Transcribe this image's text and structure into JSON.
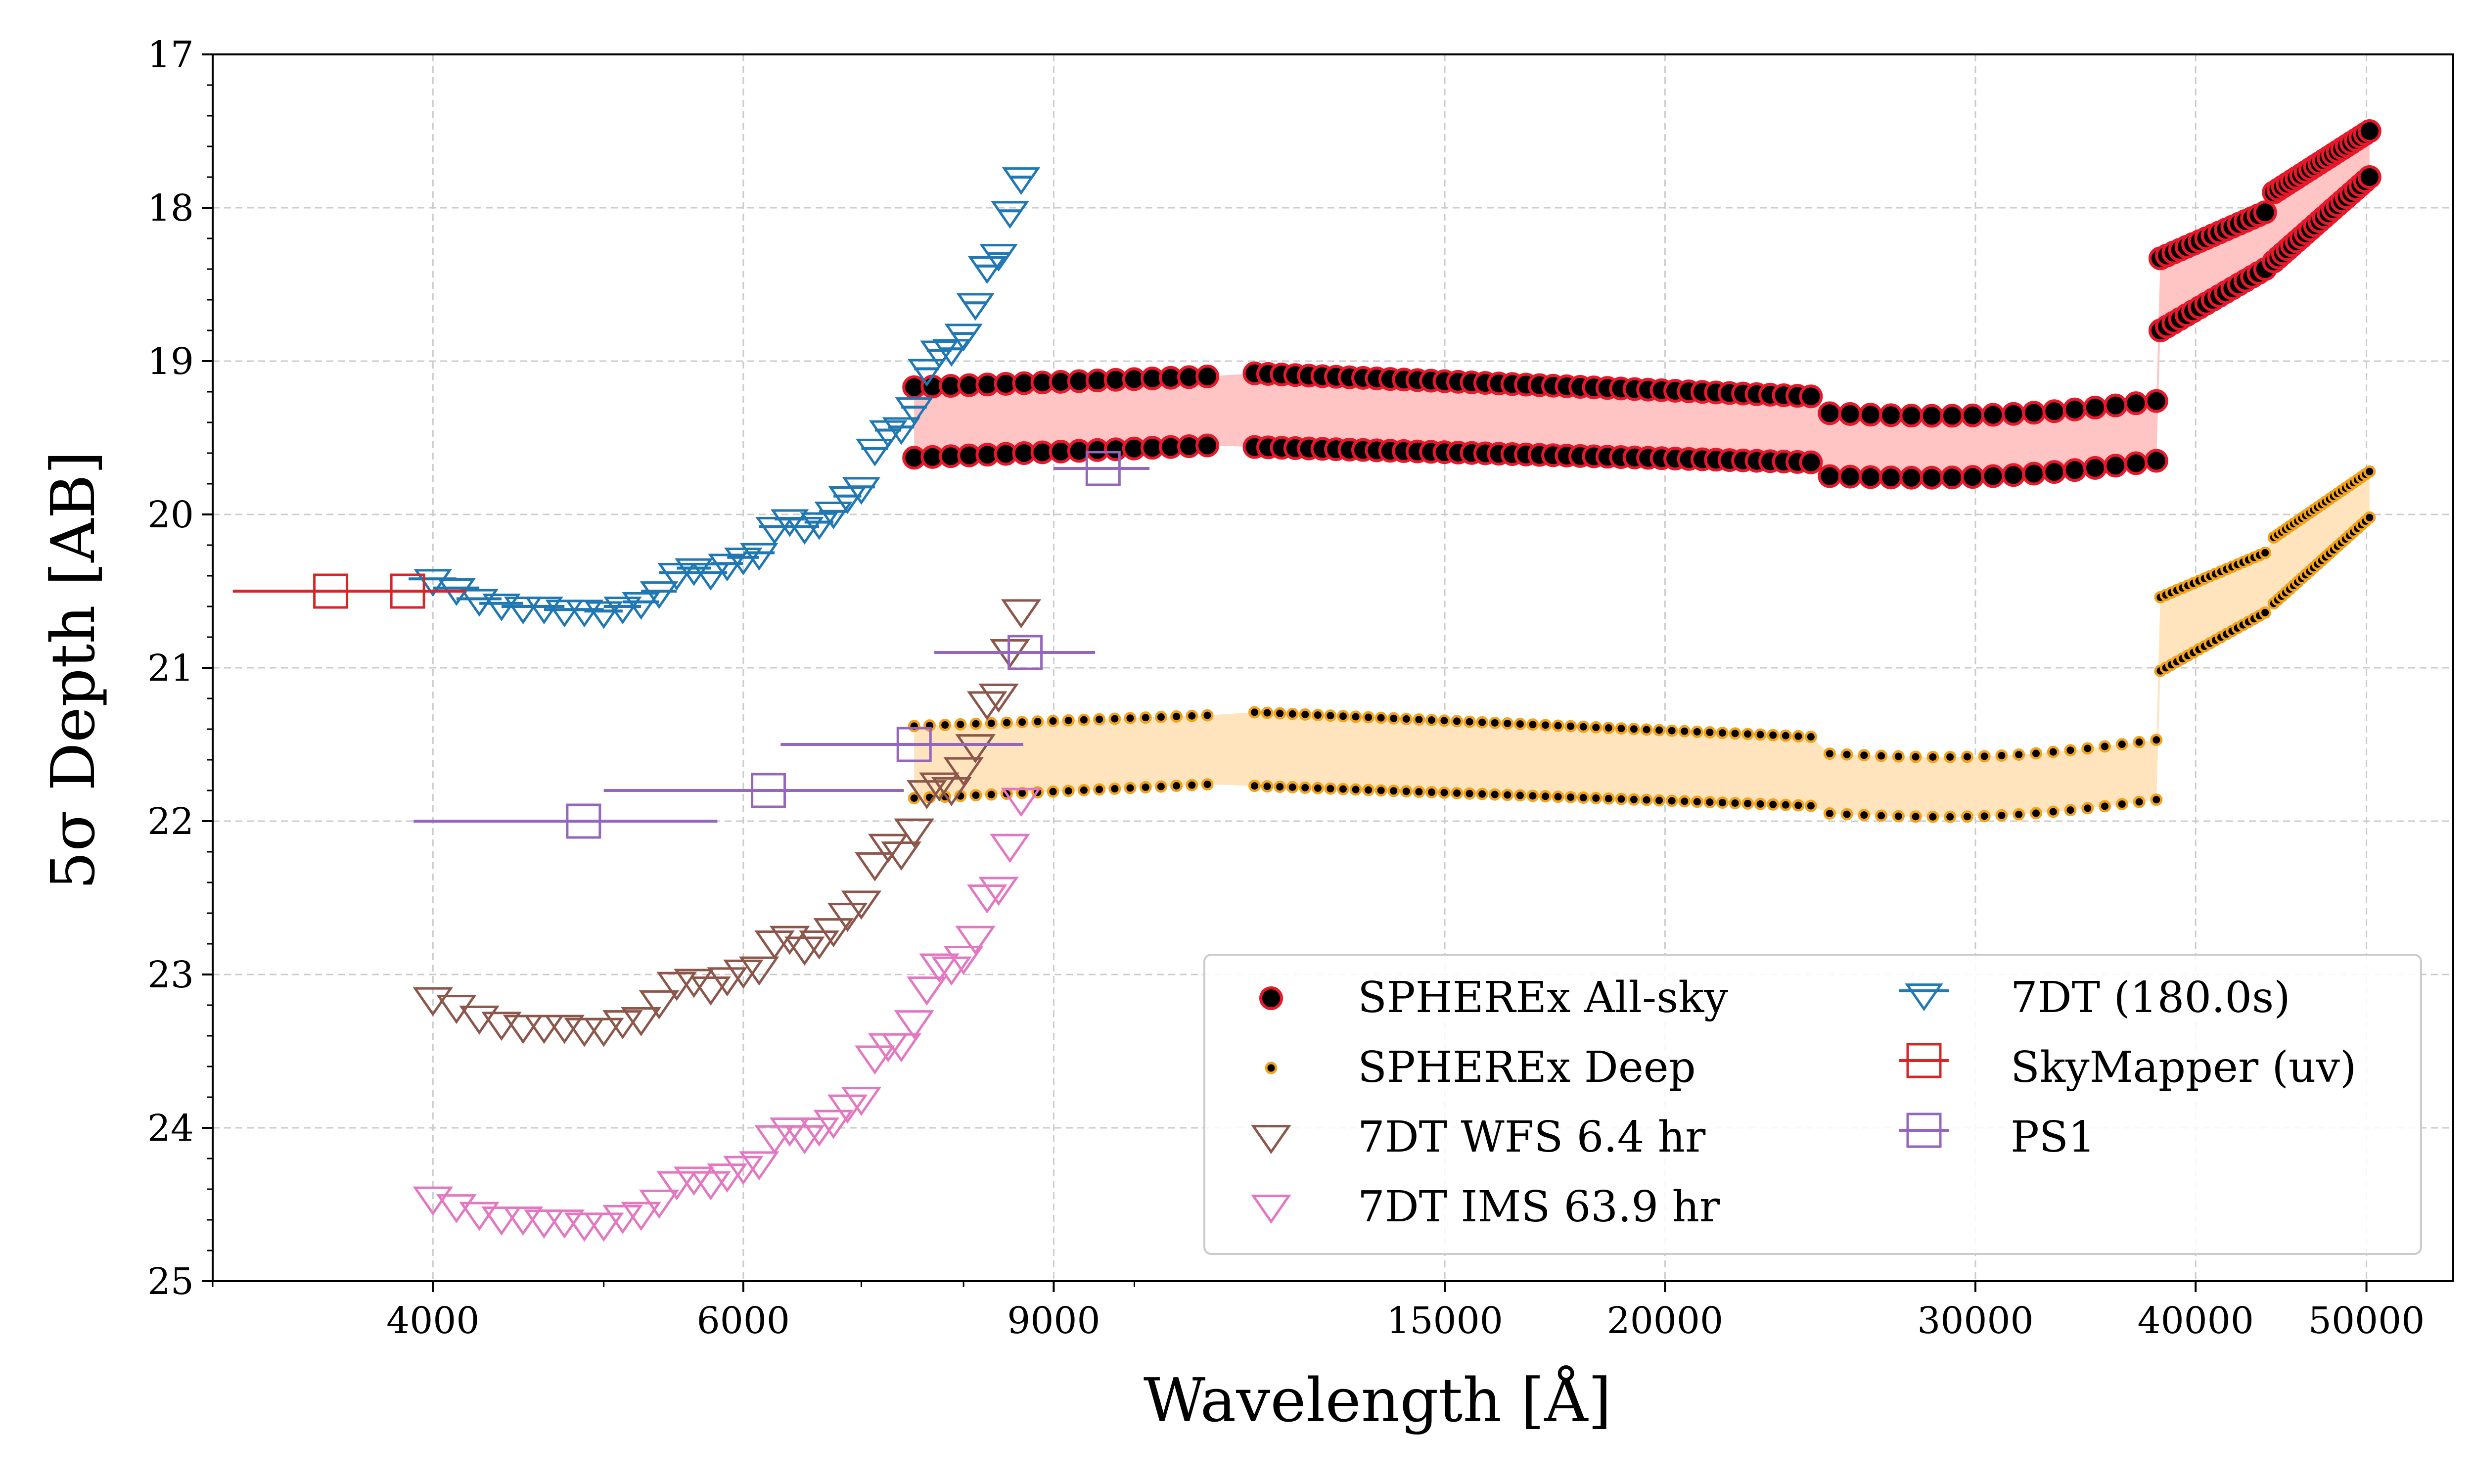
{
  "colors": {
    "allsky_band": "#ffc4c4",
    "deep_band": "#ffe4bd",
    "allsky_edge": "#e8182a",
    "deep_edge": "#f3a21b",
    "dot_fill": "#000000",
    "t7dt": "#1f77b4",
    "wfs": "#8c564b",
    "ims": "#e377c2",
    "skymapper": "#d62728",
    "ps1": "#9467bd",
    "grid": "#cccccc"
  },
  "chart_data": {
    "type": "scatter",
    "xlabel": "Wavelength [Å]",
    "ylabel": "5σ Depth [AB]",
    "xscale": "log",
    "xlim": [
      3000,
      56000
    ],
    "ylim": [
      25,
      17
    ],
    "y_inverted": true,
    "grid": true,
    "legend_position": "lower-right",
    "legend_columns": 2,
    "x_ticks": [
      {
        "value": 4000,
        "label": "4000"
      },
      {
        "value": 6000,
        "label": "6000"
      },
      {
        "value": 9000,
        "label": "9000"
      },
      {
        "value": 15000,
        "label": "15000"
      },
      {
        "value": 20000,
        "label": "20000"
      },
      {
        "value": 30000,
        "label": "30000"
      },
      {
        "value": 40000,
        "label": "40000"
      },
      {
        "value": 50000,
        "label": "50000"
      }
    ],
    "y_ticks": [
      {
        "value": 17,
        "label": "17"
      },
      {
        "value": 18,
        "label": "18"
      },
      {
        "value": 19,
        "label": "19"
      },
      {
        "value": 20,
        "label": "20"
      },
      {
        "value": 21,
        "label": "21"
      },
      {
        "value": 22,
        "label": "22"
      },
      {
        "value": 23,
        "label": "23"
      },
      {
        "value": 24,
        "label": "24"
      },
      {
        "value": 25,
        "label": "25"
      }
    ],
    "series": [
      {
        "name": "SPHEREx All-sky",
        "marker": "circle",
        "segments": [
          {
            "x0": 7500,
            "x1": 11000,
            "upper0": 19.17,
            "upper1": 19.1,
            "lower0": 19.63,
            "lower1": 19.55,
            "n": 17
          },
          {
            "x0": 11700,
            "x1": 24200,
            "upper0": 19.08,
            "upper1": 19.23,
            "lower0": 19.56,
            "lower1": 19.66,
            "n": 42
          },
          {
            "x0": 24800,
            "x1": 38000,
            "upper0": 19.34,
            "upper1": 19.26,
            "lower0": 19.75,
            "lower1": 19.65,
            "n": 17,
            "sag": 0.05
          },
          {
            "x0": 38200,
            "x1": 43800,
            "upper0": 18.33,
            "upper1": 18.03,
            "lower0": 18.8,
            "lower1": 18.4,
            "n": 17
          },
          {
            "x0": 44300,
            "x1": 50200,
            "upper0": 17.9,
            "upper1": 17.5,
            "lower0": 18.35,
            "lower1": 17.8,
            "n": 22
          }
        ]
      },
      {
        "name": "SPHEREx Deep",
        "marker": "dot",
        "segments": [
          {
            "x0": 7500,
            "x1": 11000,
            "upper0": 21.38,
            "upper1": 21.31,
            "lower0": 21.85,
            "lower1": 21.76,
            "n": 20
          },
          {
            "x0": 11700,
            "x1": 24200,
            "upper0": 21.29,
            "upper1": 21.45,
            "lower0": 21.77,
            "lower1": 21.9,
            "n": 45
          },
          {
            "x0": 24800,
            "x1": 38000,
            "upper0": 21.56,
            "upper1": 21.47,
            "lower0": 21.95,
            "lower1": 21.86,
            "n": 20,
            "sag": 0.06
          },
          {
            "x0": 38200,
            "x1": 43800,
            "upper0": 20.54,
            "upper1": 20.25,
            "lower0": 21.02,
            "lower1": 20.64,
            "n": 20
          },
          {
            "x0": 44300,
            "x1": 50200,
            "upper0": 20.15,
            "upper1": 19.72,
            "lower0": 20.58,
            "lower1": 20.02,
            "n": 25
          }
        ]
      },
      {
        "name": "7DT WFS 6.4 hr",
        "marker": "triangle-down-open",
        "points": [
          {
            "x": 4000,
            "y": 23.15
          },
          {
            "x": 4125,
            "y": 23.2
          },
          {
            "x": 4250,
            "y": 23.27
          },
          {
            "x": 4375,
            "y": 23.31
          },
          {
            "x": 4500,
            "y": 23.33
          },
          {
            "x": 4625,
            "y": 23.33
          },
          {
            "x": 4750,
            "y": 23.33
          },
          {
            "x": 4875,
            "y": 23.35
          },
          {
            "x": 5000,
            "y": 23.35
          },
          {
            "x": 5125,
            "y": 23.3
          },
          {
            "x": 5250,
            "y": 23.28
          },
          {
            "x": 5375,
            "y": 23.17
          },
          {
            "x": 5500,
            "y": 23.05
          },
          {
            "x": 5625,
            "y": 23.03
          },
          {
            "x": 5750,
            "y": 23.08
          },
          {
            "x": 5875,
            "y": 23.02
          },
          {
            "x": 6000,
            "y": 22.97
          },
          {
            "x": 6125,
            "y": 22.95
          },
          {
            "x": 6250,
            "y": 22.78
          },
          {
            "x": 6375,
            "y": 22.75
          },
          {
            "x": 6500,
            "y": 22.82
          },
          {
            "x": 6625,
            "y": 22.78
          },
          {
            "x": 6750,
            "y": 22.7
          },
          {
            "x": 6875,
            "y": 22.6
          },
          {
            "x": 7000,
            "y": 22.52
          },
          {
            "x": 7125,
            "y": 22.27
          },
          {
            "x": 7250,
            "y": 22.15
          },
          {
            "x": 7375,
            "y": 22.2
          },
          {
            "x": 7500,
            "y": 22.05
          },
          {
            "x": 7625,
            "y": 21.8
          },
          {
            "x": 7750,
            "y": 21.75
          },
          {
            "x": 7875,
            "y": 21.78
          },
          {
            "x": 8000,
            "y": 21.65
          },
          {
            "x": 8125,
            "y": 21.5
          },
          {
            "x": 8250,
            "y": 21.22
          },
          {
            "x": 8375,
            "y": 21.17
          },
          {
            "x": 8500,
            "y": 20.88
          },
          {
            "x": 8625,
            "y": 20.62
          }
        ]
      },
      {
        "name": "7DT IMS 63.9 hr",
        "marker": "triangle-down-open",
        "points": [
          {
            "x": 4000,
            "y": 24.45
          },
          {
            "x": 4125,
            "y": 24.5
          },
          {
            "x": 4250,
            "y": 24.55
          },
          {
            "x": 4375,
            "y": 24.58
          },
          {
            "x": 4500,
            "y": 24.58
          },
          {
            "x": 4625,
            "y": 24.6
          },
          {
            "x": 4750,
            "y": 24.6
          },
          {
            "x": 4875,
            "y": 24.62
          },
          {
            "x": 5000,
            "y": 24.62
          },
          {
            "x": 5125,
            "y": 24.57
          },
          {
            "x": 5250,
            "y": 24.55
          },
          {
            "x": 5375,
            "y": 24.47
          },
          {
            "x": 5500,
            "y": 24.35
          },
          {
            "x": 5625,
            "y": 24.32
          },
          {
            "x": 5750,
            "y": 24.35
          },
          {
            "x": 5875,
            "y": 24.3
          },
          {
            "x": 6000,
            "y": 24.25
          },
          {
            "x": 6125,
            "y": 24.22
          },
          {
            "x": 6250,
            "y": 24.05
          },
          {
            "x": 6375,
            "y": 24.0
          },
          {
            "x": 6500,
            "y": 24.05
          },
          {
            "x": 6625,
            "y": 24.0
          },
          {
            "x": 6750,
            "y": 23.95
          },
          {
            "x": 6875,
            "y": 23.85
          },
          {
            "x": 7000,
            "y": 23.8
          },
          {
            "x": 7125,
            "y": 23.53
          },
          {
            "x": 7250,
            "y": 23.45
          },
          {
            "x": 7375,
            "y": 23.45
          },
          {
            "x": 7500,
            "y": 23.3
          },
          {
            "x": 7625,
            "y": 23.08
          },
          {
            "x": 7750,
            "y": 22.93
          },
          {
            "x": 7875,
            "y": 22.95
          },
          {
            "x": 8000,
            "y": 22.88
          },
          {
            "x": 8125,
            "y": 22.75
          },
          {
            "x": 8250,
            "y": 22.48
          },
          {
            "x": 8375,
            "y": 22.43
          },
          {
            "x": 8500,
            "y": 22.15
          },
          {
            "x": 8625,
            "y": 21.85
          }
        ]
      },
      {
        "name": "7DT (180.0s)",
        "marker": "triangle-down-open-errorbar",
        "points": [
          {
            "x": 4000,
            "y": 20.42
          },
          {
            "x": 4125,
            "y": 20.48
          },
          {
            "x": 4250,
            "y": 20.55
          },
          {
            "x": 4375,
            "y": 20.58
          },
          {
            "x": 4500,
            "y": 20.6
          },
          {
            "x": 4625,
            "y": 20.6
          },
          {
            "x": 4750,
            "y": 20.62
          },
          {
            "x": 4875,
            "y": 20.62
          },
          {
            "x": 5000,
            "y": 20.63
          },
          {
            "x": 5125,
            "y": 20.6
          },
          {
            "x": 5250,
            "y": 20.57
          },
          {
            "x": 5375,
            "y": 20.5
          },
          {
            "x": 5500,
            "y": 20.38
          },
          {
            "x": 5625,
            "y": 20.35
          },
          {
            "x": 5750,
            "y": 20.38
          },
          {
            "x": 5875,
            "y": 20.32
          },
          {
            "x": 6000,
            "y": 20.28
          },
          {
            "x": 6125,
            "y": 20.25
          },
          {
            "x": 6250,
            "y": 20.08
          },
          {
            "x": 6375,
            "y": 20.03
          },
          {
            "x": 6500,
            "y": 20.08
          },
          {
            "x": 6625,
            "y": 20.05
          },
          {
            "x": 6750,
            "y": 19.98
          },
          {
            "x": 6875,
            "y": 19.88
          },
          {
            "x": 7000,
            "y": 19.82
          },
          {
            "x": 7125,
            "y": 19.57
          },
          {
            "x": 7250,
            "y": 19.45
          },
          {
            "x": 7375,
            "y": 19.43
          },
          {
            "x": 7500,
            "y": 19.3
          },
          {
            "x": 7625,
            "y": 19.05
          },
          {
            "x": 7750,
            "y": 18.93
          },
          {
            "x": 7875,
            "y": 18.92
          },
          {
            "x": 8000,
            "y": 18.82
          },
          {
            "x": 8125,
            "y": 18.62
          },
          {
            "x": 8250,
            "y": 18.38
          },
          {
            "x": 8375,
            "y": 18.3
          },
          {
            "x": 8500,
            "y": 18.02
          },
          {
            "x": 8625,
            "y": 17.8
          }
        ],
        "xerr": 125
      },
      {
        "name": "SkyMapper (uv)",
        "marker": "square-open-errorbar",
        "points": [
          {
            "x": 3500,
            "y": 20.5,
            "xerr_low": 3080,
            "xerr_high": 3900
          },
          {
            "x": 3870,
            "y": 20.5,
            "xerr_low": 3600,
            "xerr_high": 4180
          }
        ]
      },
      {
        "name": "PS1",
        "marker": "square-open-errorbar",
        "points": [
          {
            "x": 4870,
            "y": 22.0,
            "xerr_low": 3900,
            "xerr_high": 5800
          },
          {
            "x": 6200,
            "y": 21.8,
            "xerr_low": 5000,
            "xerr_high": 7400
          },
          {
            "x": 7500,
            "y": 21.5,
            "xerr_low": 6300,
            "xerr_high": 8650
          },
          {
            "x": 8670,
            "y": 20.9,
            "xerr_low": 7700,
            "xerr_high": 9500
          },
          {
            "x": 9600,
            "y": 19.7,
            "xerr_low": 9000,
            "xerr_high": 10200
          }
        ]
      }
    ]
  }
}
